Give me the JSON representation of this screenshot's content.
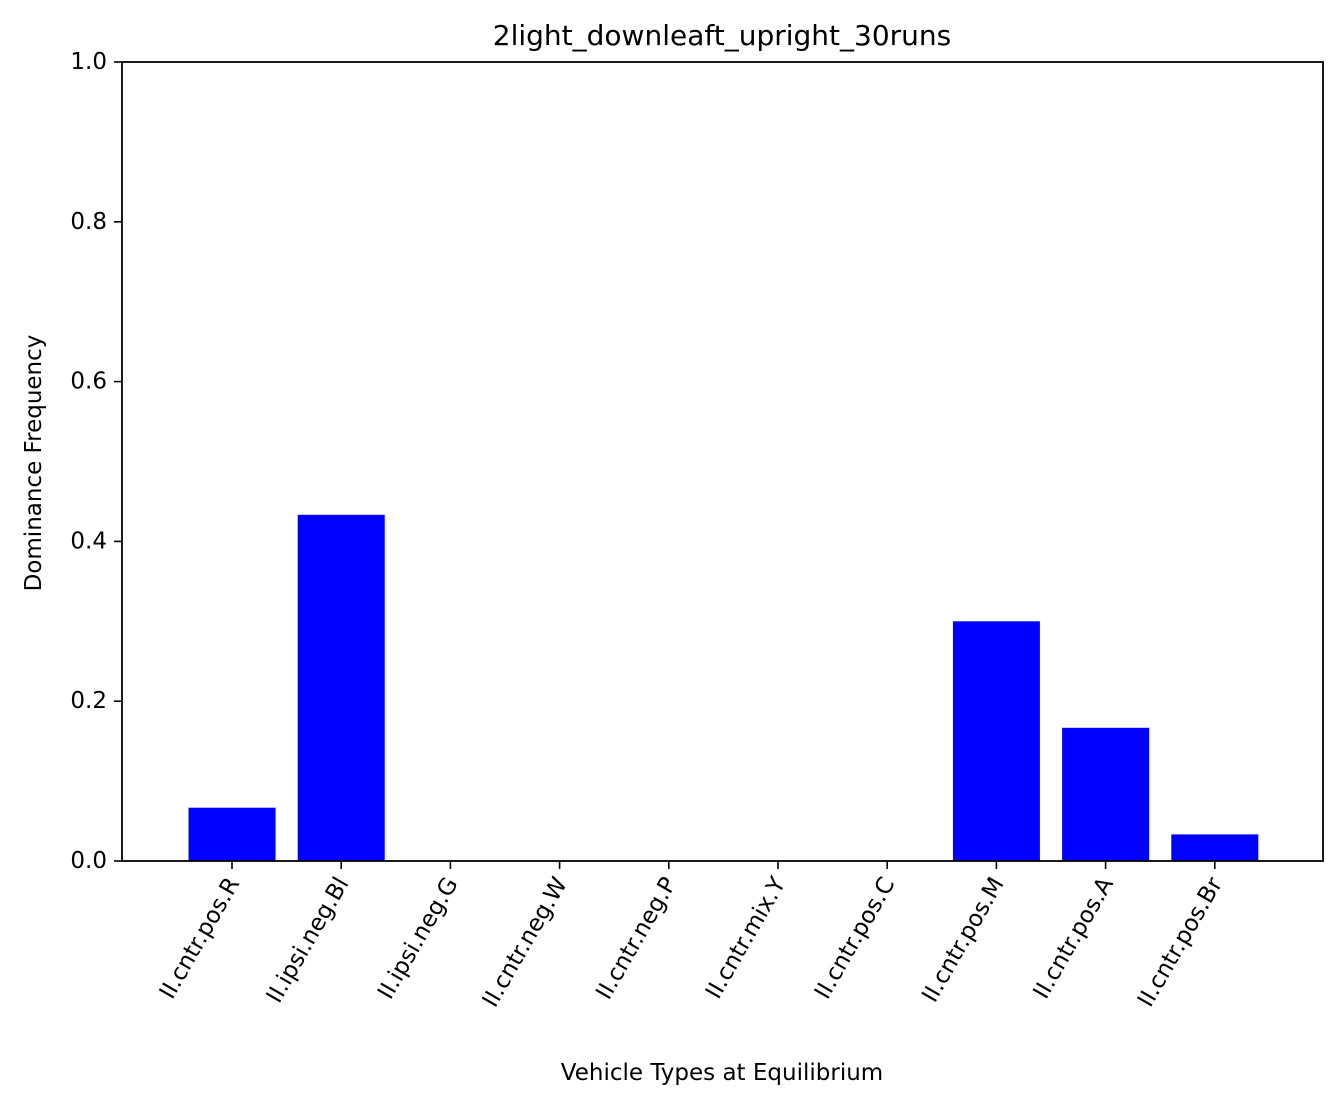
{
  "chart_data": {
    "type": "bar",
    "title": "2light_downleaft_upright_30runs",
    "xlabel": "Vehicle Types at Equilibrium",
    "ylabel": "Dominance Frequency",
    "categories": [
      "II.cntr.pos.R",
      "II.ipsi.neg.Bl",
      "II.ipsi.neg.G",
      "II.cntr.neg.W",
      "II.cntr.neg.P",
      "II.cntr.mix.Y",
      "II.cntr.pos.C",
      "II.cntr.pos.M",
      "II.cntr.pos.A",
      "II.cntr.pos.Br"
    ],
    "values": [
      0.0667,
      0.4333,
      0,
      0,
      0,
      0,
      0,
      0.3,
      0.1667,
      0.0333
    ],
    "ylim": [
      0,
      1.0
    ],
    "yticks": [
      "0.0",
      "0.2",
      "0.4",
      "0.6",
      "0.8",
      "1.0"
    ],
    "bar_color": "#0000ff",
    "grid": false,
    "legend": "none"
  }
}
